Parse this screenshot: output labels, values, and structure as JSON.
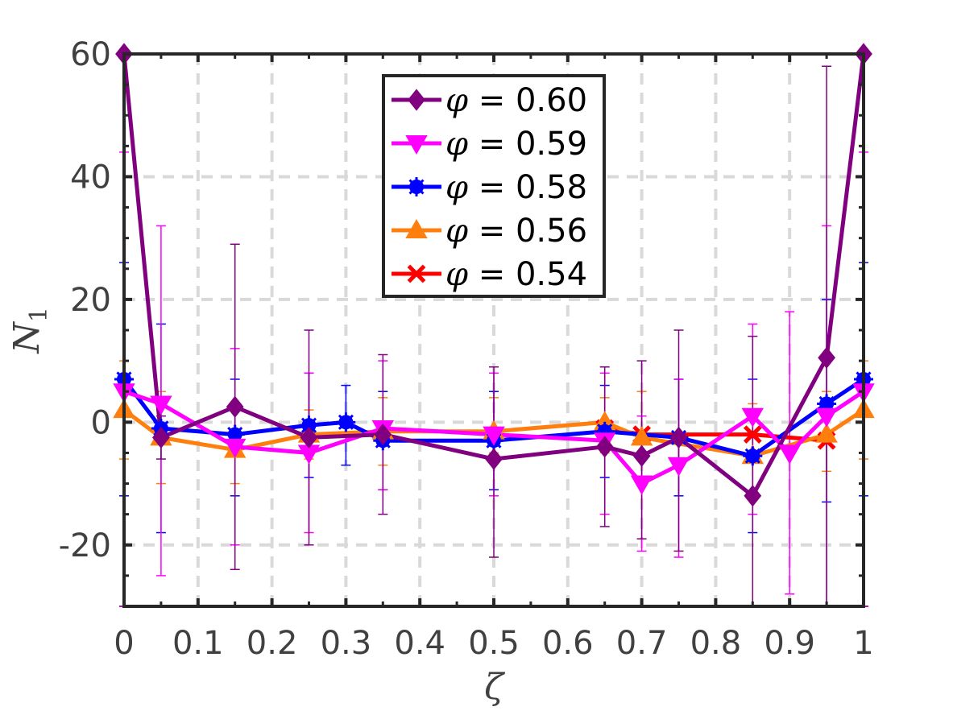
{
  "chart_data": {
    "type": "line",
    "xlabel": "ζ",
    "ylabel": "N",
    "ylabel_sub": "1",
    "xlim": [
      0,
      1
    ],
    "ylim": [
      -30,
      60
    ],
    "grid": true,
    "legend_position": "top-center",
    "x_ticks": [
      0,
      0.1,
      0.2,
      0.3,
      0.4,
      0.5,
      0.6,
      0.7,
      0.8,
      0.9,
      1
    ],
    "x_tick_labels": [
      "0",
      "0.1",
      "0.2",
      "0.3",
      "0.4",
      "0.5",
      "0.6",
      "0.7",
      "0.8",
      "0.9",
      "1"
    ],
    "y_ticks": [
      -20,
      0,
      20,
      40,
      60
    ],
    "y_tick_labels": [
      "-20",
      "0",
      "20",
      "40",
      "60"
    ],
    "series": [
      {
        "name": "φ = 0.54",
        "legend_symbol": "φ",
        "legend_value": "= 0.54",
        "color": "#ff0000",
        "marker": "x",
        "points": [
          {
            "x": 0.65,
            "y": -1
          },
          {
            "x": 0.7,
            "y": -2
          },
          {
            "x": 0.85,
            "y": -2
          },
          {
            "x": 0.95,
            "y": -3
          }
        ]
      },
      {
        "name": "φ = 0.56",
        "legend_symbol": "φ",
        "legend_value": "= 0.56",
        "color": "#ff7f0e",
        "marker": "triangle-up",
        "points": [
          {
            "x": 0.0,
            "y": 2,
            "lo": -6,
            "hi": 10
          },
          {
            "x": 0.05,
            "y": -2.5,
            "lo": -10,
            "hi": 5
          },
          {
            "x": 0.15,
            "y": -4.5,
            "lo": -10,
            "hi": 2
          },
          {
            "x": 0.25,
            "y": -2,
            "lo": -6,
            "hi": 2
          },
          {
            "x": 0.35,
            "y": -1.5,
            "lo": -7,
            "hi": 4
          },
          {
            "x": 0.5,
            "y": -1.5,
            "lo": -5,
            "hi": 4
          },
          {
            "x": 0.65,
            "y": 0,
            "lo": -5,
            "hi": 4
          },
          {
            "x": 0.7,
            "y": -2.5,
            "lo": -9,
            "hi": 5
          },
          {
            "x": 0.85,
            "y": -5.5,
            "lo": -12,
            "hi": 3
          },
          {
            "x": 0.95,
            "y": -2,
            "lo": -8,
            "hi": 5
          },
          {
            "x": 1.0,
            "y": 2,
            "lo": -6,
            "hi": 10
          }
        ]
      },
      {
        "name": "φ = 0.58",
        "legend_symbol": "φ",
        "legend_value": "= 0.58",
        "color": "#0000ff",
        "marker": "asterisk",
        "points": [
          {
            "x": 0.0,
            "y": 7,
            "lo": -12,
            "hi": 26
          },
          {
            "x": 0.05,
            "y": -1,
            "lo": -18,
            "hi": 16
          },
          {
            "x": 0.15,
            "y": -2,
            "lo": -12,
            "hi": 7
          },
          {
            "x": 0.25,
            "y": -0.5,
            "lo": -9,
            "hi": 8
          },
          {
            "x": 0.3,
            "y": 0,
            "lo": -7,
            "hi": 6
          },
          {
            "x": 0.35,
            "y": -3,
            "lo": -11,
            "hi": 5
          },
          {
            "x": 0.5,
            "y": -3,
            "lo": -11,
            "hi": 5
          },
          {
            "x": 0.65,
            "y": -1.5,
            "lo": -9,
            "hi": 6
          },
          {
            "x": 0.75,
            "y": -2.5,
            "lo": -12,
            "hi": 7
          },
          {
            "x": 0.85,
            "y": -5.5,
            "lo": -18,
            "hi": 7
          },
          {
            "x": 0.95,
            "y": 3,
            "lo": -13,
            "hi": 20
          },
          {
            "x": 1.0,
            "y": 7,
            "lo": -12,
            "hi": 26
          }
        ]
      },
      {
        "name": "φ = 0.59",
        "legend_symbol": "φ",
        "legend_value": "= 0.59",
        "color": "#ff00ff",
        "marker": "triangle-down",
        "points": [
          {
            "x": 0.0,
            "y": 5,
            "lo": -33,
            "hi": 44
          },
          {
            "x": 0.05,
            "y": 3,
            "lo": -25,
            "hi": 32
          },
          {
            "x": 0.15,
            "y": -4,
            "lo": -20,
            "hi": 12
          },
          {
            "x": 0.25,
            "y": -5,
            "lo": -18,
            "hi": 8
          },
          {
            "x": 0.35,
            "y": -1,
            "lo": -11,
            "hi": 10
          },
          {
            "x": 0.5,
            "y": -2,
            "lo": -12,
            "hi": 8
          },
          {
            "x": 0.65,
            "y": -3,
            "lo": -15,
            "hi": 8
          },
          {
            "x": 0.7,
            "y": -10,
            "lo": -21,
            "hi": 1
          },
          {
            "x": 0.75,
            "y": -7,
            "lo": -22,
            "hi": 7
          },
          {
            "x": 0.85,
            "y": 1,
            "lo": -15,
            "hi": 16
          },
          {
            "x": 0.9,
            "y": -5,
            "lo": -28,
            "hi": 18
          },
          {
            "x": 0.95,
            "y": 1,
            "lo": -30,
            "hi": 32
          },
          {
            "x": 1.0,
            "y": 5,
            "lo": -33,
            "hi": 44
          }
        ]
      },
      {
        "name": "φ = 0.60",
        "legend_symbol": "φ",
        "legend_value": "= 0.60",
        "color": "#800080",
        "marker": "diamond",
        "points": [
          {
            "x": 0.0,
            "y": 60,
            "lo": -30,
            "hi": 60
          },
          {
            "x": 0.05,
            "y": -2.5,
            "lo": -6,
            "hi": 1
          },
          {
            "x": 0.15,
            "y": 2.5,
            "lo": -24,
            "hi": 29
          },
          {
            "x": 0.25,
            "y": -2.5,
            "lo": -20,
            "hi": 15
          },
          {
            "x": 0.35,
            "y": -2,
            "lo": -15,
            "hi": 11
          },
          {
            "x": 0.5,
            "y": -6,
            "lo": -22,
            "hi": 9
          },
          {
            "x": 0.65,
            "y": -4,
            "lo": -17,
            "hi": 9
          },
          {
            "x": 0.7,
            "y": -5.5,
            "lo": -19,
            "hi": 10
          },
          {
            "x": 0.75,
            "y": -2.5,
            "lo": -21,
            "hi": 15
          },
          {
            "x": 0.85,
            "y": -12,
            "lo": -30,
            "hi": 14
          },
          {
            "x": 0.95,
            "y": 10.5,
            "lo": -30,
            "hi": 58
          },
          {
            "x": 1.0,
            "y": 60,
            "lo": -30,
            "hi": 60
          }
        ]
      }
    ],
    "legend_order": [
      "φ = 0.60",
      "φ = 0.59",
      "φ = 0.58",
      "φ = 0.56",
      "φ = 0.54"
    ]
  }
}
